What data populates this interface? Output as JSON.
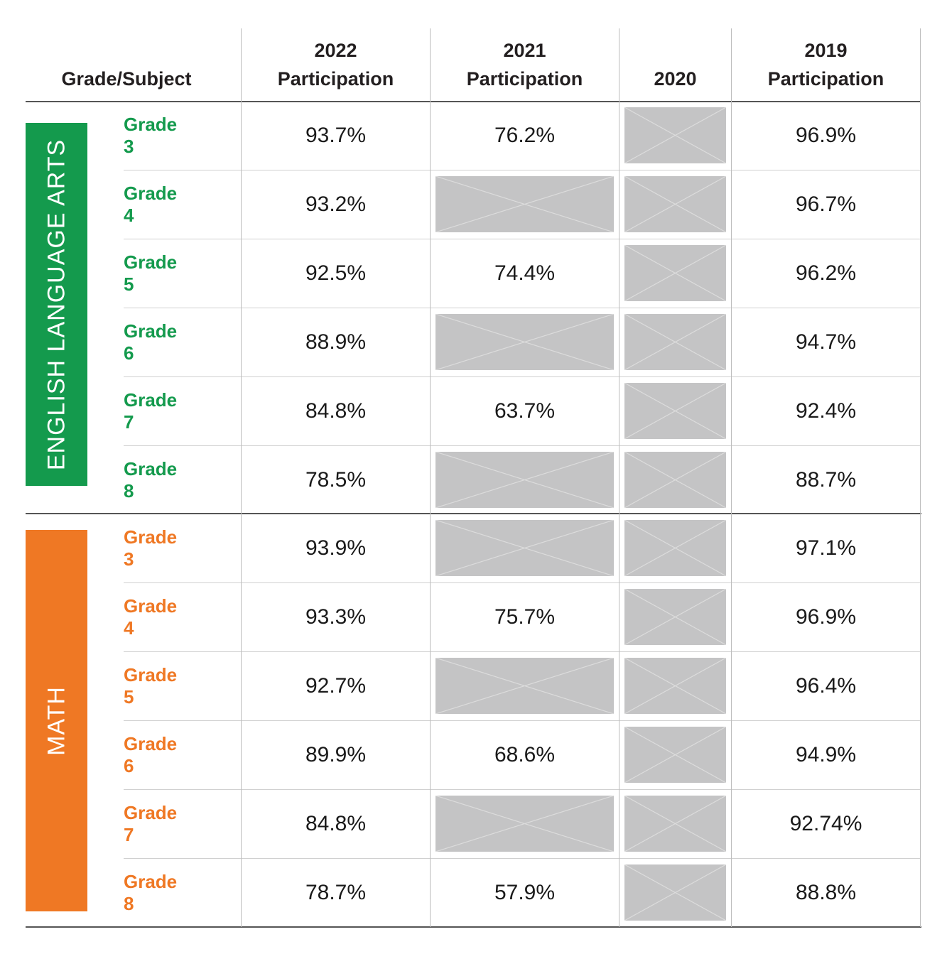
{
  "header": {
    "grade_subject": "Grade/Subject",
    "col2022_year": "2022",
    "col2022_label": "Participation",
    "col2021_year": "2021",
    "col2021_label": "Participation",
    "col2020": "2020",
    "col2019_year": "2019",
    "col2019_label": "Participation"
  },
  "colors": {
    "ela": "#149a4d",
    "math": "#ef7824",
    "na_fill": "#c4c4c5"
  },
  "sections": [
    {
      "subject": "ENGLISH LANGUAGE ARTS",
      "rows": [
        {
          "grade": "Grade 3",
          "p2022": "93.7%",
          "p2021": "76.2%",
          "p2020": null,
          "p2019": "96.9%"
        },
        {
          "grade": "Grade 4",
          "p2022": "93.2%",
          "p2021": null,
          "p2020": null,
          "p2019": "96.7%"
        },
        {
          "grade": "Grade 5",
          "p2022": "92.5%",
          "p2021": "74.4%",
          "p2020": null,
          "p2019": "96.2%"
        },
        {
          "grade": "Grade 6",
          "p2022": "88.9%",
          "p2021": null,
          "p2020": null,
          "p2019": "94.7%"
        },
        {
          "grade": "Grade 7",
          "p2022": "84.8%",
          "p2021": "63.7%",
          "p2020": null,
          "p2019": "92.4%"
        },
        {
          "grade": "Grade 8",
          "p2022": "78.5%",
          "p2021": null,
          "p2020": null,
          "p2019": "88.7%"
        }
      ]
    },
    {
      "subject": "MATH",
      "rows": [
        {
          "grade": "Grade 3",
          "p2022": "93.9%",
          "p2021": null,
          "p2020": null,
          "p2019": "97.1%"
        },
        {
          "grade": "Grade 4",
          "p2022": "93.3%",
          "p2021": "75.7%",
          "p2020": null,
          "p2019": "96.9%"
        },
        {
          "grade": "Grade 5",
          "p2022": "92.7%",
          "p2021": null,
          "p2020": null,
          "p2019": "96.4%"
        },
        {
          "grade": "Grade 6",
          "p2022": "89.9%",
          "p2021": "68.6%",
          "p2020": null,
          "p2019": "94.9%"
        },
        {
          "grade": "Grade 7",
          "p2022": "84.8%",
          "p2021": null,
          "p2020": null,
          "p2019": "92.74%"
        },
        {
          "grade": "Grade 8",
          "p2022": "78.7%",
          "p2021": "57.9%",
          "p2020": null,
          "p2019": "88.8%"
        }
      ]
    }
  ]
}
